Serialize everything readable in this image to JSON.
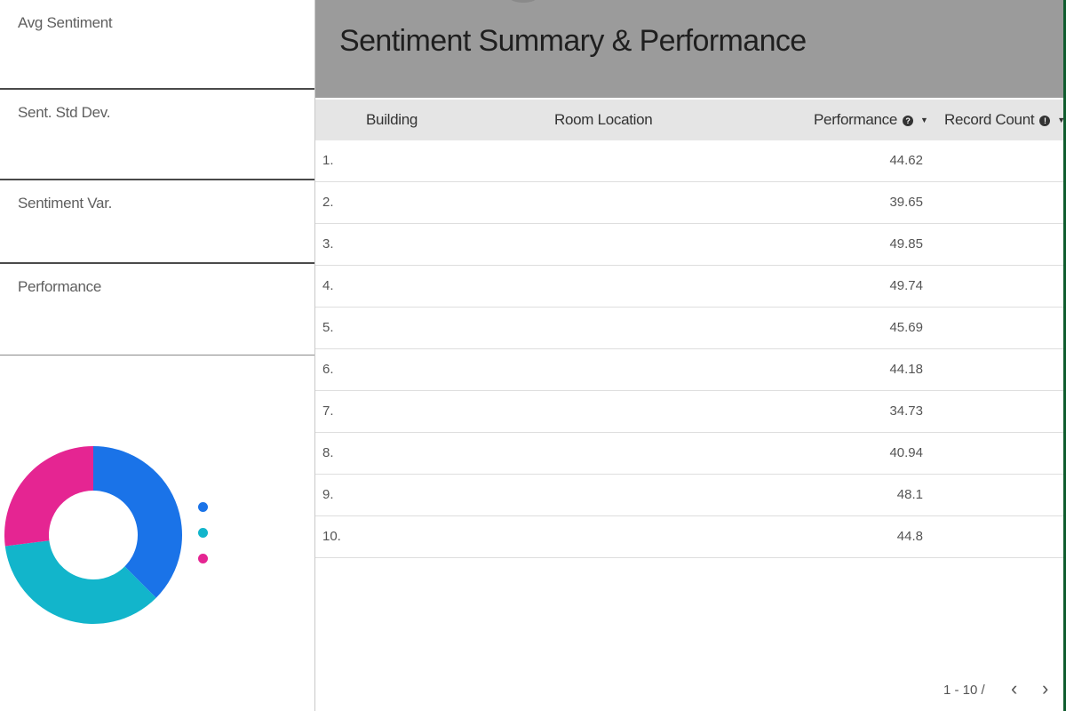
{
  "metrics": [
    {
      "label": "Avg Sentiment"
    },
    {
      "label": "Sent. Std Dev."
    },
    {
      "label": "Sentiment Var."
    },
    {
      "label": "Performance"
    }
  ],
  "donut": {
    "colors": [
      "#1a73e8",
      "#12b5cb",
      "#e52592"
    ],
    "values": [
      0.375,
      0.355,
      0.27
    ]
  },
  "report": {
    "title": "Sentiment Summary & Performance"
  },
  "table": {
    "columns": {
      "building": "Building",
      "room_location": "Room Location",
      "performance": "Performance",
      "record_count": "Record Count"
    },
    "rows": [
      {
        "index": "1.",
        "performance": "44.62"
      },
      {
        "index": "2.",
        "performance": "39.65"
      },
      {
        "index": "3.",
        "performance": "49.85"
      },
      {
        "index": "4.",
        "performance": "49.74"
      },
      {
        "index": "5.",
        "performance": "45.69"
      },
      {
        "index": "6.",
        "performance": "44.18"
      },
      {
        "index": "7.",
        "performance": "34.73"
      },
      {
        "index": "8.",
        "performance": "40.94"
      },
      {
        "index": "9.",
        "performance": "48.1"
      },
      {
        "index": "10.",
        "performance": "44.8"
      }
    ]
  },
  "pagination": {
    "range": "1 - 10 /",
    "prev_icon": "chevron-left-icon",
    "next_icon": "chevron-right-icon"
  }
}
